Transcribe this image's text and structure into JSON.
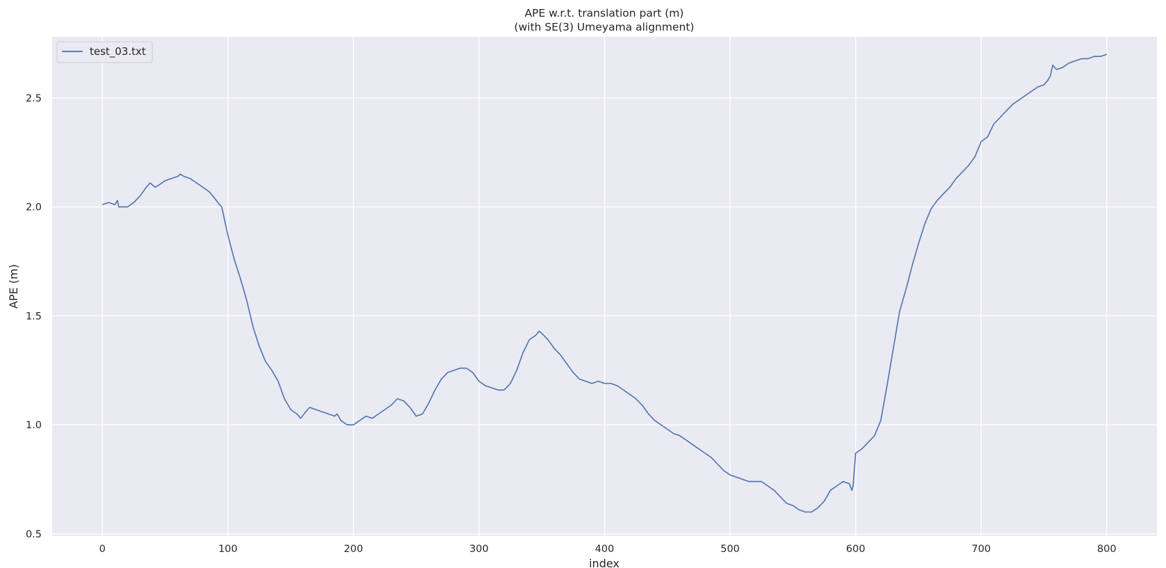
{
  "chart_data": {
    "type": "line",
    "title": "APE w.r.t. translation part (m)",
    "subtitle": "(with SE(3) Umeyama alignment)",
    "xlabel": "index",
    "ylabel": "APE (m)",
    "xlim": [
      -40,
      840
    ],
    "ylim": [
      0.49,
      2.78
    ],
    "xticks": [
      0,
      100,
      200,
      300,
      400,
      500,
      600,
      700,
      800
    ],
    "yticks": [
      0.5,
      1.0,
      1.5,
      2.0,
      2.5
    ],
    "xtick_labels": [
      "0",
      "100",
      "200",
      "300",
      "400",
      "500",
      "600",
      "700",
      "800"
    ],
    "ytick_labels": [
      "0.5",
      "1.0",
      "1.5",
      "2.0",
      "2.5"
    ],
    "grid": true,
    "legend_position": "top-left",
    "colors": {
      "background": "#eaeaf2",
      "grid": "#ffffff",
      "line": "#4c72b0"
    },
    "series": [
      {
        "name": "test_03.txt",
        "x": [
          0,
          5,
          10,
          12,
          13,
          15,
          20,
          25,
          30,
          35,
          38,
          40,
          42,
          45,
          50,
          55,
          60,
          62,
          65,
          70,
          75,
          80,
          85,
          88,
          92,
          95,
          100,
          105,
          110,
          115,
          120,
          125,
          130,
          135,
          140,
          145,
          150,
          155,
          158,
          162,
          165,
          170,
          175,
          180,
          185,
          187,
          190,
          195,
          200,
          205,
          210,
          215,
          220,
          225,
          230,
          235,
          240,
          245,
          250,
          255,
          260,
          265,
          270,
          275,
          280,
          285,
          290,
          295,
          300,
          305,
          310,
          315,
          320,
          325,
          330,
          335,
          340,
          345,
          348,
          350,
          355,
          360,
          365,
          370,
          375,
          380,
          385,
          390,
          395,
          400,
          405,
          410,
          415,
          420,
          425,
          430,
          435,
          440,
          445,
          450,
          455,
          460,
          465,
          470,
          475,
          480,
          485,
          490,
          495,
          500,
          505,
          510,
          515,
          520,
          525,
          530,
          535,
          540,
          545,
          550,
          555,
          560,
          565,
          570,
          575,
          580,
          585,
          590,
          595,
          597,
          598,
          600,
          605,
          610,
          615,
          620,
          625,
          630,
          635,
          640,
          645,
          650,
          655,
          660,
          665,
          670,
          675,
          680,
          685,
          690,
          695,
          700,
          705,
          710,
          715,
          720,
          725,
          730,
          735,
          740,
          745,
          750,
          753,
          755,
          757,
          760,
          765,
          770,
          775,
          780,
          785,
          790,
          795,
          800
        ],
        "values": [
          2.01,
          2.02,
          2.01,
          2.03,
          2.0,
          2.0,
          2.0,
          2.02,
          2.05,
          2.09,
          2.11,
          2.1,
          2.09,
          2.1,
          2.12,
          2.13,
          2.14,
          2.15,
          2.14,
          2.13,
          2.11,
          2.09,
          2.07,
          2.05,
          2.02,
          2.0,
          1.87,
          1.76,
          1.67,
          1.57,
          1.45,
          1.36,
          1.29,
          1.25,
          1.2,
          1.12,
          1.07,
          1.05,
          1.03,
          1.06,
          1.08,
          1.07,
          1.06,
          1.05,
          1.04,
          1.05,
          1.02,
          1.0,
          1.0,
          1.02,
          1.04,
          1.03,
          1.05,
          1.07,
          1.09,
          1.12,
          1.11,
          1.08,
          1.04,
          1.05,
          1.1,
          1.16,
          1.21,
          1.24,
          1.25,
          1.26,
          1.26,
          1.24,
          1.2,
          1.18,
          1.17,
          1.16,
          1.16,
          1.19,
          1.25,
          1.33,
          1.39,
          1.41,
          1.43,
          1.42,
          1.39,
          1.35,
          1.32,
          1.28,
          1.24,
          1.21,
          1.2,
          1.19,
          1.2,
          1.19,
          1.19,
          1.18,
          1.16,
          1.14,
          1.12,
          1.09,
          1.05,
          1.02,
          1.0,
          0.98,
          0.96,
          0.95,
          0.93,
          0.91,
          0.89,
          0.87,
          0.85,
          0.82,
          0.79,
          0.77,
          0.76,
          0.75,
          0.74,
          0.74,
          0.74,
          0.72,
          0.7,
          0.67,
          0.64,
          0.63,
          0.61,
          0.6,
          0.6,
          0.62,
          0.65,
          0.7,
          0.72,
          0.74,
          0.73,
          0.7,
          0.72,
          0.87,
          0.89,
          0.92,
          0.95,
          1.02,
          1.18,
          1.35,
          1.52,
          1.62,
          1.73,
          1.83,
          1.92,
          1.99,
          2.03,
          2.06,
          2.09,
          2.13,
          2.16,
          2.19,
          2.23,
          2.3,
          2.32,
          2.38,
          2.41,
          2.44,
          2.47,
          2.49,
          2.51,
          2.53,
          2.55,
          2.56,
          2.58,
          2.6,
          2.65,
          2.63,
          2.64,
          2.66,
          2.67,
          2.68,
          2.68,
          2.69,
          2.69,
          2.7
        ]
      }
    ]
  }
}
